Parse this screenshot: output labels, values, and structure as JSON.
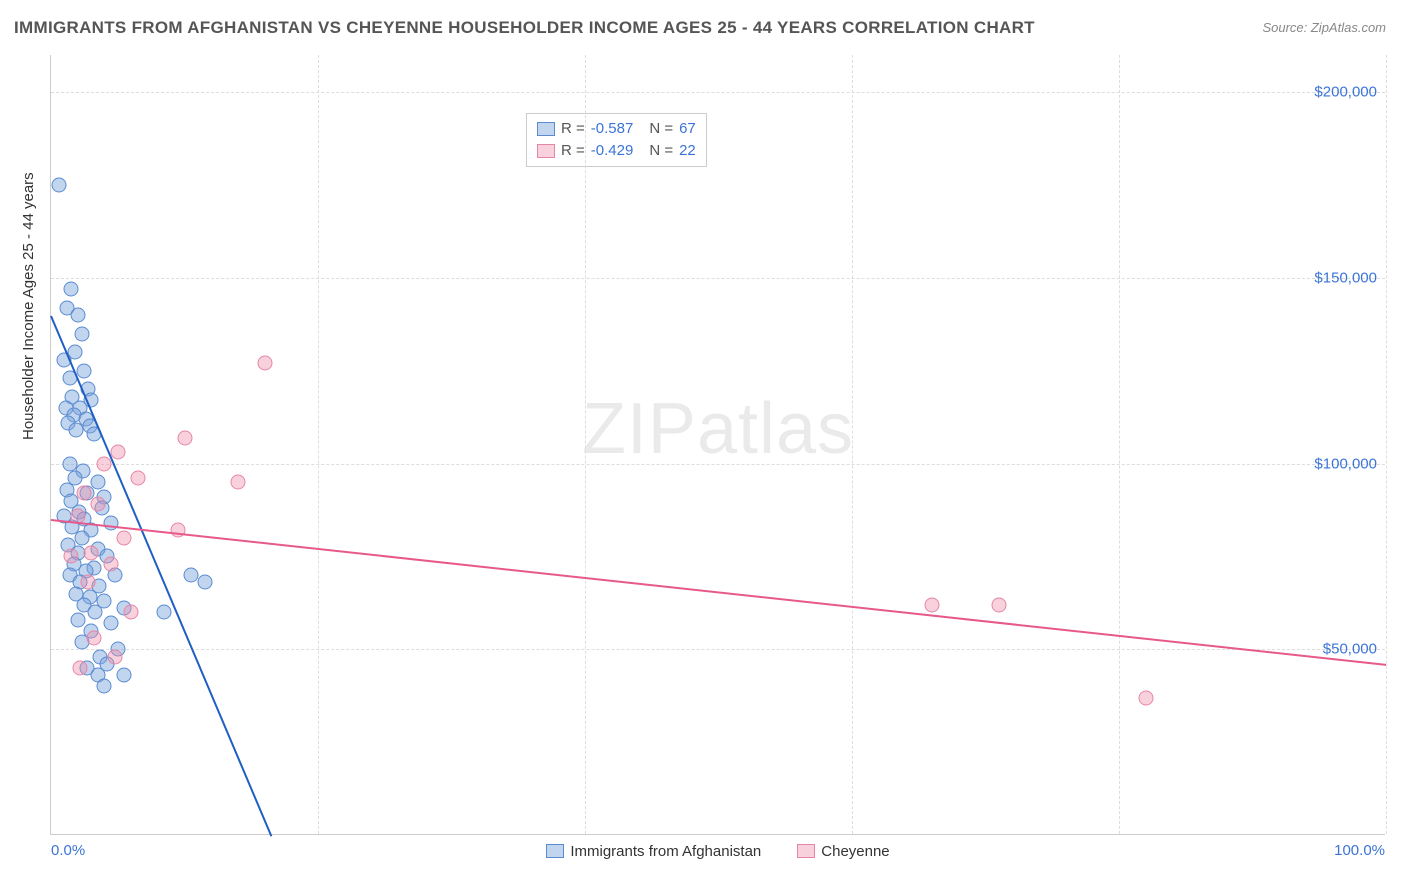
{
  "title": "IMMIGRANTS FROM AFGHANISTAN VS CHEYENNE HOUSEHOLDER INCOME AGES 25 - 44 YEARS CORRELATION CHART",
  "source": "Source: ZipAtlas.com",
  "watermark_a": "ZIP",
  "watermark_b": "atlas",
  "chart": {
    "type": "scatter",
    "xlim": [
      0,
      100
    ],
    "ylim": [
      0,
      210000
    ],
    "xlabel_min": "0.0%",
    "xlabel_max": "100.0%",
    "ylabel": "Householder Income Ages 25 - 44 years",
    "y_ticks": [
      {
        "v": 50000,
        "label": "$50,000"
      },
      {
        "v": 100000,
        "label": "$100,000"
      },
      {
        "v": 150000,
        "label": "$150,000"
      },
      {
        "v": 200000,
        "label": "$200,000"
      }
    ],
    "x_gridlines": [
      20,
      40,
      60,
      80,
      100
    ],
    "background_color": "#ffffff",
    "grid_color": "#dddddd",
    "axis_color": "#cccccc",
    "tick_color": "#3b74d6"
  },
  "series": [
    {
      "name": "Immigrants from Afghanistan",
      "short": "afghanistan",
      "fill": "rgba(120,162,219,0.45)",
      "stroke": "#5a8bd0",
      "trend_color": "#1f5fc4",
      "R": "-0.587",
      "N": "67",
      "trend": {
        "x1": 0,
        "y1": 140000,
        "x2": 16.5,
        "y2": 0
      },
      "points": [
        [
          0.6,
          175000
        ],
        [
          1.2,
          142000
        ],
        [
          1.5,
          147000
        ],
        [
          2.0,
          140000
        ],
        [
          2.3,
          135000
        ],
        [
          1.8,
          130000
        ],
        [
          1.0,
          128000
        ],
        [
          2.5,
          125000
        ],
        [
          1.4,
          123000
        ],
        [
          2.8,
          120000
        ],
        [
          1.6,
          118000
        ],
        [
          3.0,
          117000
        ],
        [
          1.1,
          115000
        ],
        [
          2.2,
          115000
        ],
        [
          1.7,
          113000
        ],
        [
          2.6,
          112000
        ],
        [
          1.3,
          111000
        ],
        [
          2.9,
          110000
        ],
        [
          1.9,
          109000
        ],
        [
          3.2,
          108000
        ],
        [
          1.4,
          100000
        ],
        [
          2.4,
          98000
        ],
        [
          1.8,
          96000
        ],
        [
          3.5,
          95000
        ],
        [
          1.2,
          93000
        ],
        [
          2.7,
          92000
        ],
        [
          4.0,
          91000
        ],
        [
          1.5,
          90000
        ],
        [
          3.8,
          88000
        ],
        [
          2.1,
          87000
        ],
        [
          1.0,
          86000
        ],
        [
          2.5,
          85000
        ],
        [
          4.5,
          84000
        ],
        [
          1.6,
          83000
        ],
        [
          3.0,
          82000
        ],
        [
          2.3,
          80000
        ],
        [
          1.3,
          78000
        ],
        [
          3.5,
          77000
        ],
        [
          2.0,
          76000
        ],
        [
          4.2,
          75000
        ],
        [
          1.7,
          73000
        ],
        [
          3.2,
          72000
        ],
        [
          2.6,
          71000
        ],
        [
          1.4,
          70000
        ],
        [
          4.8,
          70000
        ],
        [
          2.2,
          68000
        ],
        [
          3.6,
          67000
        ],
        [
          1.9,
          65000
        ],
        [
          2.9,
          64000
        ],
        [
          4.0,
          63000
        ],
        [
          2.5,
          62000
        ],
        [
          5.5,
          61000
        ],
        [
          3.3,
          60000
        ],
        [
          2.0,
          58000
        ],
        [
          4.5,
          57000
        ],
        [
          8.5,
          60000
        ],
        [
          10.5,
          70000
        ],
        [
          11.5,
          68000
        ],
        [
          3.0,
          55000
        ],
        [
          2.3,
          52000
        ],
        [
          5.0,
          50000
        ],
        [
          3.7,
          48000
        ],
        [
          4.2,
          46000
        ],
        [
          2.7,
          45000
        ],
        [
          3.5,
          43000
        ],
        [
          5.5,
          43000
        ],
        [
          4.0,
          40000
        ]
      ]
    },
    {
      "name": "Cheyenne",
      "short": "cheyenne",
      "fill": "rgba(238,140,171,0.40)",
      "stroke": "#e586a6",
      "trend_color": "#e7598b",
      "R": "-0.429",
      "N": "22",
      "trend": {
        "x1": 0,
        "y1": 85000,
        "x2": 100,
        "y2": 46000
      },
      "points": [
        [
          16.0,
          127000
        ],
        [
          10.0,
          107000
        ],
        [
          5.0,
          103000
        ],
        [
          4.0,
          100000
        ],
        [
          6.5,
          96000
        ],
        [
          14.0,
          95000
        ],
        [
          2.5,
          92000
        ],
        [
          3.5,
          89000
        ],
        [
          2.0,
          86000
        ],
        [
          9.5,
          82000
        ],
        [
          5.5,
          80000
        ],
        [
          3.0,
          76000
        ],
        [
          4.5,
          73000
        ],
        [
          1.5,
          75000
        ],
        [
          2.8,
          68000
        ],
        [
          6.0,
          60000
        ],
        [
          3.2,
          53000
        ],
        [
          4.8,
          48000
        ],
        [
          2.2,
          45000
        ],
        [
          66.0,
          62000
        ],
        [
          71.0,
          62000
        ],
        [
          82.0,
          37000
        ]
      ]
    }
  ],
  "bottom_legend": [
    {
      "swatch_fill": "rgba(120,162,219,0.45)",
      "swatch_stroke": "#5a8bd0",
      "label": "Immigrants from Afghanistan"
    },
    {
      "swatch_fill": "rgba(238,140,171,0.40)",
      "swatch_stroke": "#e586a6",
      "label": "Cheyenne"
    }
  ]
}
